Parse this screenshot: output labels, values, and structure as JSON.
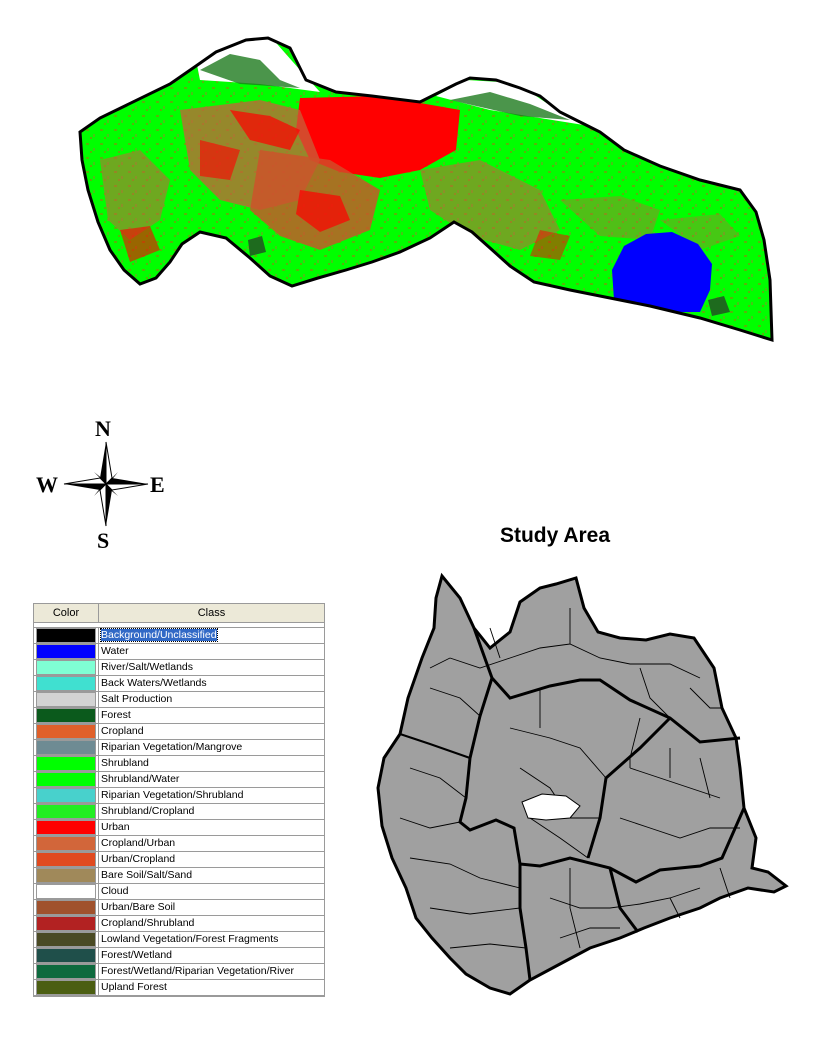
{
  "compass": {
    "north": "N",
    "south": "S",
    "west": "W",
    "east": "E"
  },
  "study_area": {
    "title": "Study Area"
  },
  "legend": {
    "headers": {
      "color": "Color",
      "class": "Class"
    },
    "items": [
      {
        "label": "Background/Unclassified",
        "color": "#000000",
        "selected": true
      },
      {
        "label": "Water",
        "color": "#0000ff"
      },
      {
        "label": "River/Salt/Wetlands",
        "color": "#7fffd4"
      },
      {
        "label": "Back Waters/Wetlands",
        "color": "#40e0d0"
      },
      {
        "label": "Salt Production",
        "color": "#d3d3d3"
      },
      {
        "label": "Forest",
        "color": "#0b5a1c"
      },
      {
        "label": "Cropland",
        "color": "#e0602a"
      },
      {
        "label": "Riparian Vegetation/Mangrove",
        "color": "#6e8b93"
      },
      {
        "label": "Shrubland",
        "color": "#00ff00"
      },
      {
        "label": "Shrubland/Water",
        "color": "#00ff00"
      },
      {
        "label": "Riparian Vegetation/Shrubland",
        "color": "#48d1cc"
      },
      {
        "label": "Shrubland/Cropland",
        "color": "#22ee22"
      },
      {
        "label": "Urban",
        "color": "#ff0000"
      },
      {
        "label": "Cropland/Urban",
        "color": "#d2663a"
      },
      {
        "label": "Urban/Cropland",
        "color": "#e04a20"
      },
      {
        "label": "Bare Soil/Salt/Sand",
        "color": "#a0895a"
      },
      {
        "label": "Cloud",
        "color": "#ffffff"
      },
      {
        "label": "Urban/Bare Soil",
        "color": "#a0522d"
      },
      {
        "label": "Cropland/Shrubland",
        "color": "#b22222"
      },
      {
        "label": "Lowland Vegetation/Forest Fragments",
        "color": "#4a4a24"
      },
      {
        "label": "Forest/Wetland",
        "color": "#1f4f4a"
      },
      {
        "label": "Forest/Wetland/Riparian Vegetation/River",
        "color": "#0e6a3e"
      },
      {
        "label": "Upland Forest",
        "color": "#4b5e12"
      }
    ]
  },
  "map_colors": {
    "shrubland": "#00ff00",
    "urban": "#ff0000",
    "cropland": "#c8603a",
    "water": "#0000ff",
    "forest": "#1e6b1e",
    "study_area_fill": "#a0a0a0"
  }
}
